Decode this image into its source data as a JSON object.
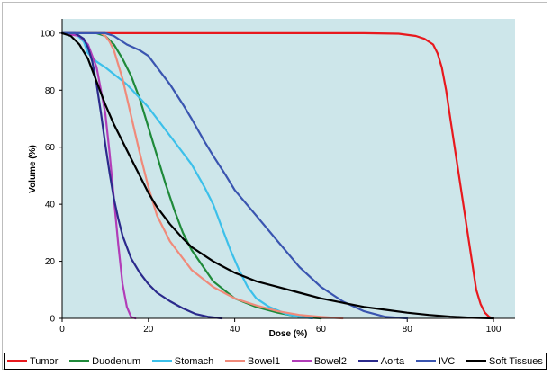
{
  "chart_data": {
    "type": "line",
    "title": "",
    "xlabel": "Dose (%)",
    "ylabel": "Volume (%)",
    "xlim": [
      0,
      105
    ],
    "ylim": [
      0,
      105
    ],
    "x_ticks": [
      0,
      20,
      40,
      60,
      80,
      100
    ],
    "y_ticks": [
      0,
      20,
      40,
      60,
      80,
      100
    ],
    "grid": false,
    "legend_position": "bottom",
    "plot_background": "#cde6ea",
    "series": [
      {
        "name": "Tumor",
        "color": "#e8191e",
        "x": [
          0,
          70,
          78,
          82,
          84,
          86,
          87,
          88,
          89,
          90,
          91,
          92,
          93,
          94,
          95,
          96,
          97,
          98,
          99,
          100
        ],
        "y": [
          100,
          100,
          99.8,
          99,
          98,
          96,
          93,
          88,
          80,
          70,
          60,
          50,
          40,
          30,
          20,
          10,
          5,
          2,
          0.5,
          0
        ]
      },
      {
        "name": "Duodenum",
        "color": "#1f8a3a",
        "x": [
          0,
          5,
          8,
          10,
          12,
          14,
          16,
          18,
          20,
          22,
          24,
          26,
          28,
          30,
          35,
          40,
          45,
          50,
          55,
          60
        ],
        "y": [
          100,
          100,
          100,
          99,
          96,
          91,
          85,
          77,
          67,
          57,
          47,
          38,
          30,
          24,
          13,
          7,
          4,
          2,
          0.5,
          0
        ]
      },
      {
        "name": "Stomach",
        "color": "#3cc0ea",
        "x": [
          0,
          3,
          5,
          6,
          8,
          10,
          15,
          20,
          25,
          30,
          33,
          35,
          37,
          39,
          41,
          43,
          45,
          48,
          52,
          55,
          58
        ],
        "y": [
          100,
          100,
          97,
          93,
          90,
          88,
          82,
          74,
          64,
          54,
          46,
          40,
          32,
          24,
          17,
          11,
          7,
          4,
          1.5,
          0.5,
          0
        ]
      },
      {
        "name": "Bowel1",
        "color": "#f08a7a",
        "x": [
          0,
          5,
          9,
          10,
          11,
          12,
          14,
          16,
          18,
          20,
          22,
          25,
          28,
          30,
          35,
          40,
          45,
          50,
          55,
          60,
          65
        ],
        "y": [
          100,
          100,
          100,
          99,
          97,
          94,
          84,
          71,
          58,
          46,
          36,
          27,
          21,
          17,
          11,
          7,
          4.5,
          2.5,
          1.2,
          0.5,
          0
        ]
      },
      {
        "name": "Bowel2",
        "color": "#b23db8",
        "x": [
          0,
          4,
          6,
          8,
          10,
          11,
          12,
          13,
          14,
          15,
          16,
          17
        ],
        "y": [
          100,
          99,
          96,
          88,
          72,
          58,
          42,
          26,
          12,
          4,
          0.5,
          0
        ]
      },
      {
        "name": "Aorta",
        "color": "#2b2a8c",
        "x": [
          0,
          3,
          5,
          6,
          7,
          8,
          9,
          10,
          11,
          12,
          13,
          14,
          16,
          18,
          20,
          22,
          25,
          28,
          31,
          34,
          37
        ],
        "y": [
          100,
          100,
          98,
          95,
          90,
          82,
          72,
          61,
          51,
          42,
          35,
          29,
          21,
          16,
          12,
          9,
          6,
          3.5,
          1.5,
          0.5,
          0
        ]
      },
      {
        "name": "IVC",
        "color": "#3a55b0",
        "x": [
          0,
          5,
          10,
          12,
          15,
          18,
          20,
          22,
          25,
          28,
          30,
          33,
          35,
          38,
          40,
          45,
          50,
          55,
          60,
          65,
          70,
          75,
          80
        ],
        "y": [
          100,
          100,
          100,
          99,
          96,
          94,
          92,
          88,
          82,
          75,
          70,
          62,
          57,
          50,
          45,
          36,
          27,
          18,
          11,
          6,
          2.5,
          0.5,
          0
        ]
      },
      {
        "name": "Soft Tissues",
        "color": "#000000",
        "x": [
          0,
          2,
          4,
          6,
          8,
          10,
          12,
          14,
          16,
          18,
          20,
          22,
          25,
          28,
          30,
          35,
          40,
          45,
          50,
          55,
          60,
          65,
          70,
          75,
          80,
          85,
          90,
          95,
          100
        ],
        "y": [
          100,
          99,
          96,
          91,
          83,
          75,
          68,
          62,
          56,
          50,
          44,
          39,
          33,
          28,
          25,
          20,
          16,
          13,
          11,
          9,
          7,
          5.5,
          4,
          3,
          2,
          1.2,
          0.6,
          0.2,
          0
        ]
      }
    ]
  }
}
